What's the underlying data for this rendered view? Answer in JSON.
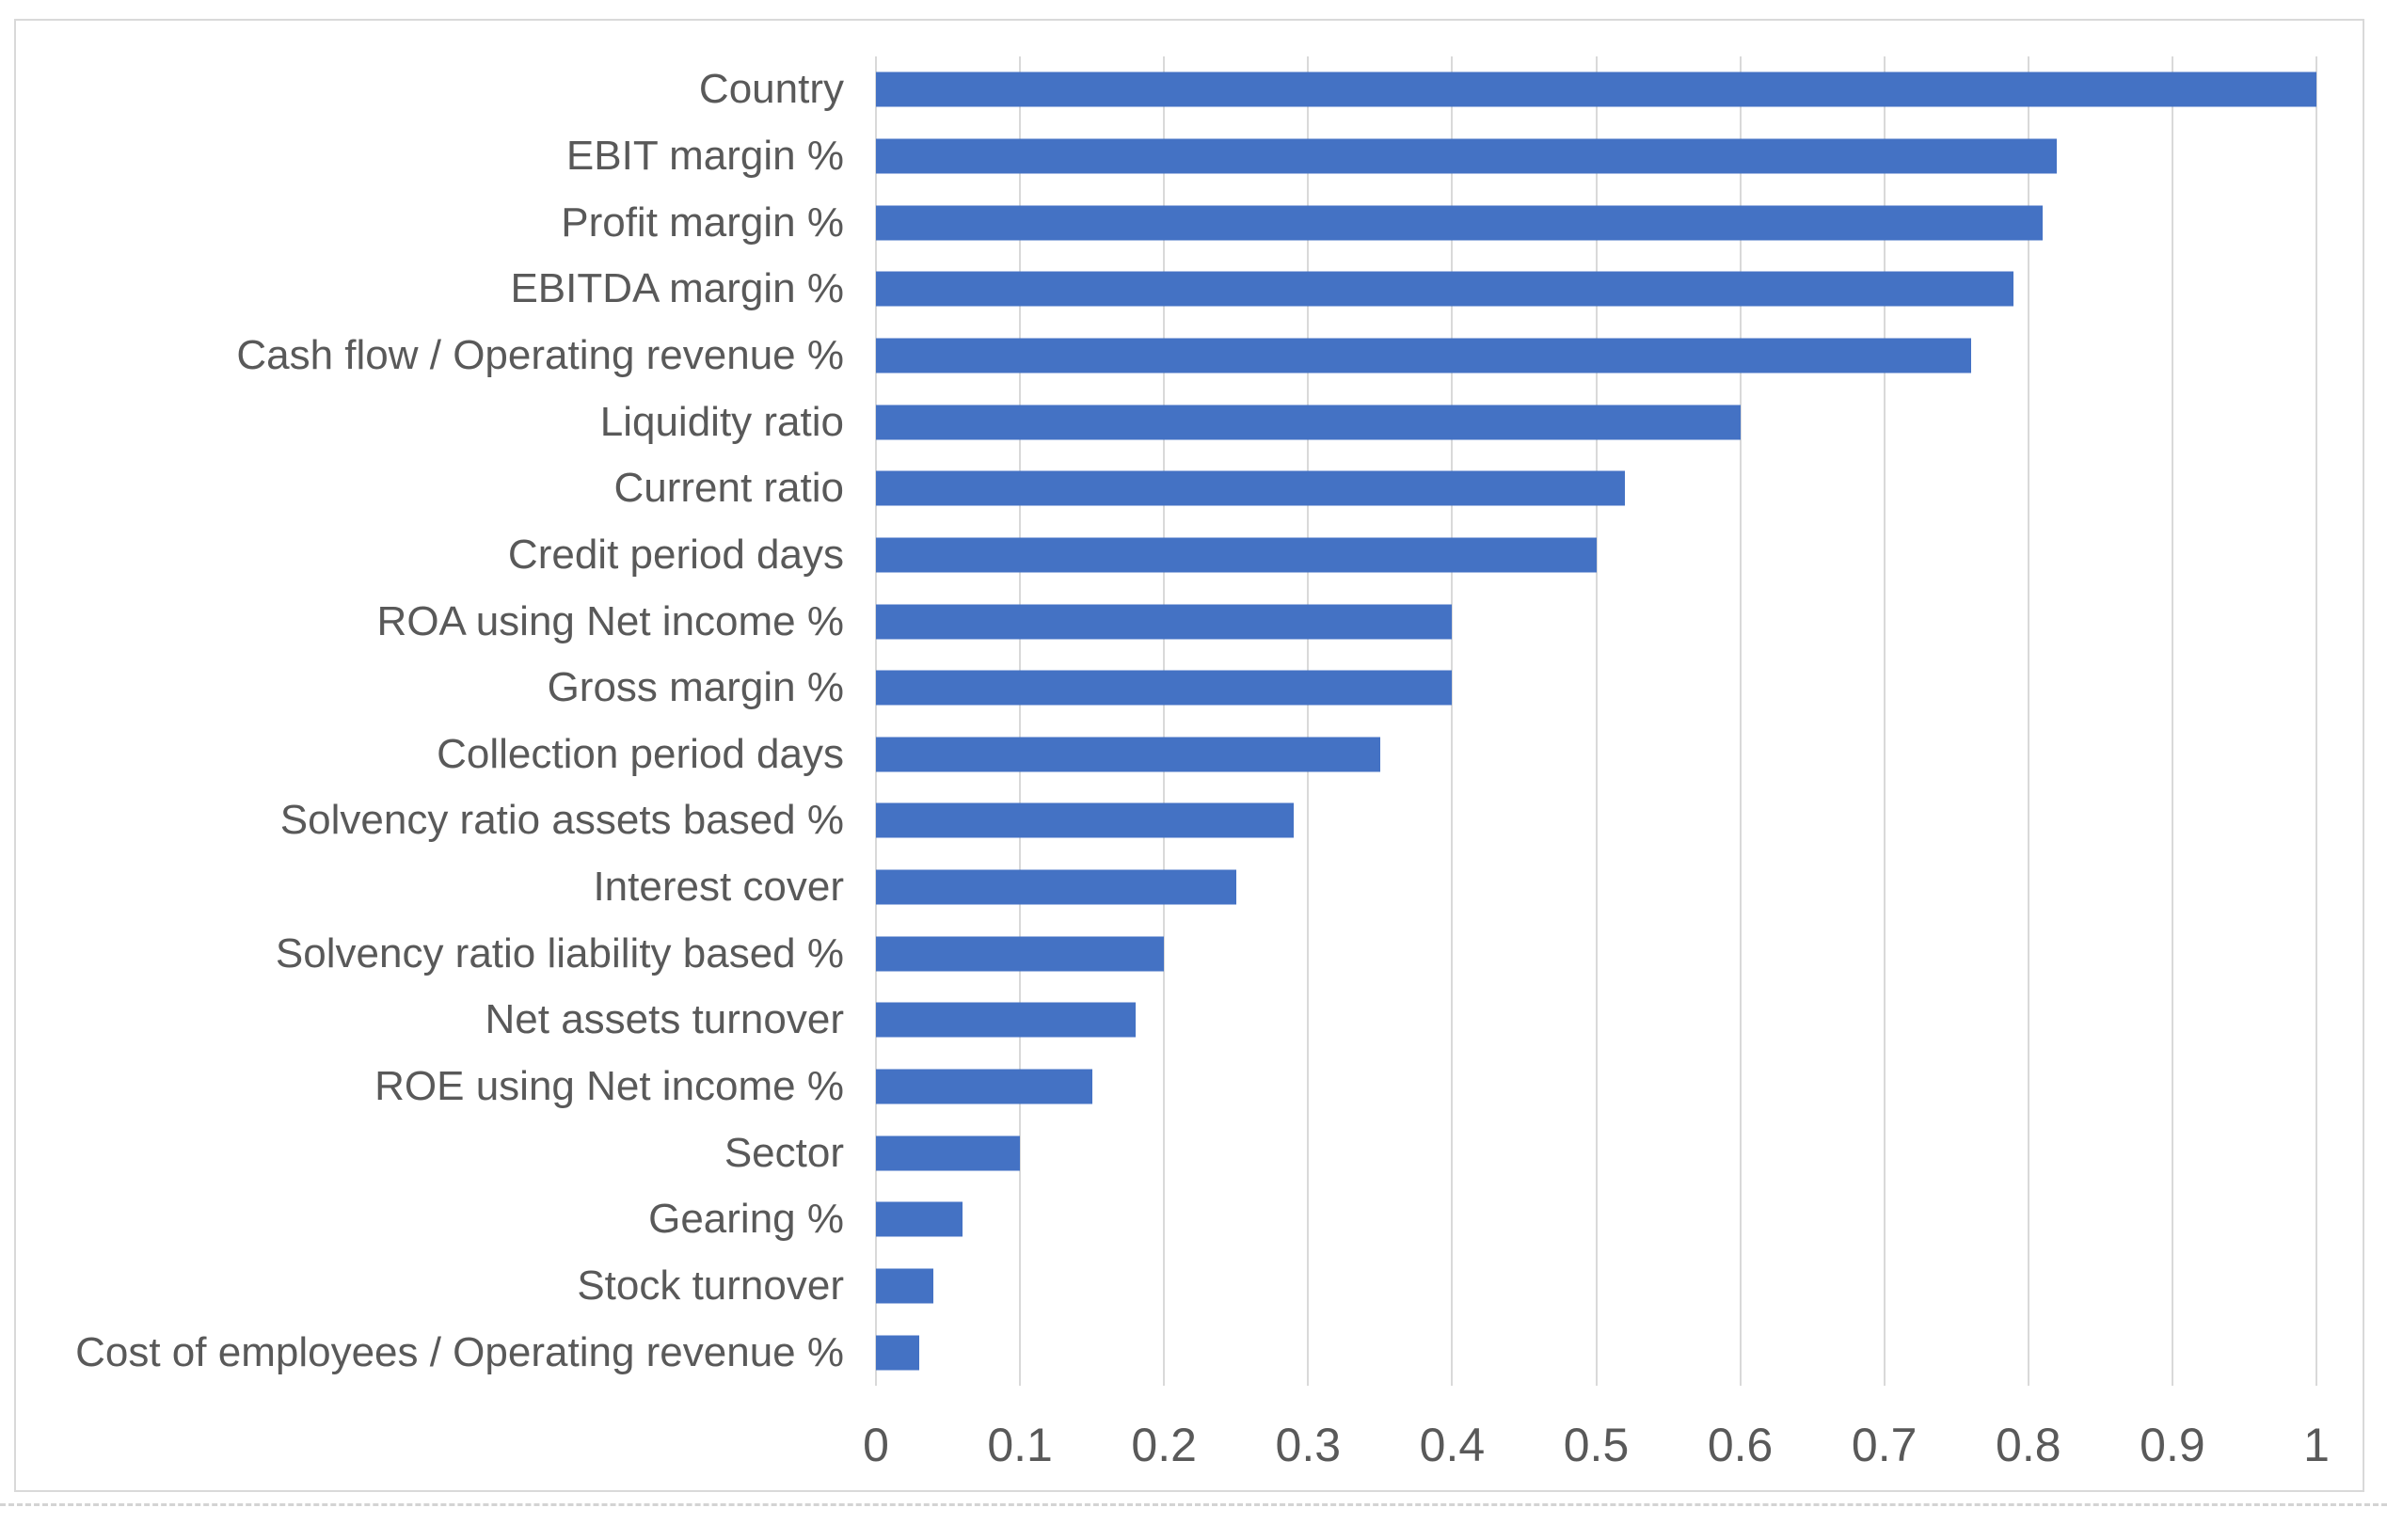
{
  "chart_data": {
    "type": "bar",
    "orientation": "horizontal",
    "title": "",
    "xlabel": "",
    "ylabel": "",
    "categories": [
      "Country",
      "EBIT margin %",
      "Profit margin %",
      "EBITDA margin %",
      "Cash flow / Operating revenue %",
      "Liquidity ratio",
      "Current ratio",
      "Credit period days",
      "ROA using Net income %",
      "Gross margin %",
      "Collection period days",
      "Solvency ratio assets based %",
      "Interest cover",
      "Solvency ratio liability based %",
      "Net assets turnover",
      "ROE using Net income %",
      "Sector",
      "Gearing %",
      "Stock turnover",
      "Cost of employees / Operating revenue %"
    ],
    "values": [
      1.0,
      0.82,
      0.81,
      0.79,
      0.76,
      0.6,
      0.52,
      0.5,
      0.4,
      0.4,
      0.35,
      0.29,
      0.25,
      0.2,
      0.18,
      0.15,
      0.1,
      0.06,
      0.04,
      0.03
    ],
    "xlim": [
      0,
      1
    ],
    "x_ticks": [
      0,
      0.1,
      0.2,
      0.3,
      0.4,
      0.5,
      0.6,
      0.7,
      0.8,
      0.9,
      1
    ],
    "x_tick_labels": [
      "0",
      "0.1",
      "0.2",
      "0.3",
      "0.4",
      "0.5",
      "0.6",
      "0.7",
      "0.8",
      "0.9",
      "1"
    ],
    "grid": "vertical-only",
    "legend": "none",
    "colors": {
      "bar": "#4472C4",
      "gridline": "#D9D9D9",
      "frame_border": "#D9D9D9",
      "text": "#595959",
      "background": "#FFFFFF"
    }
  }
}
